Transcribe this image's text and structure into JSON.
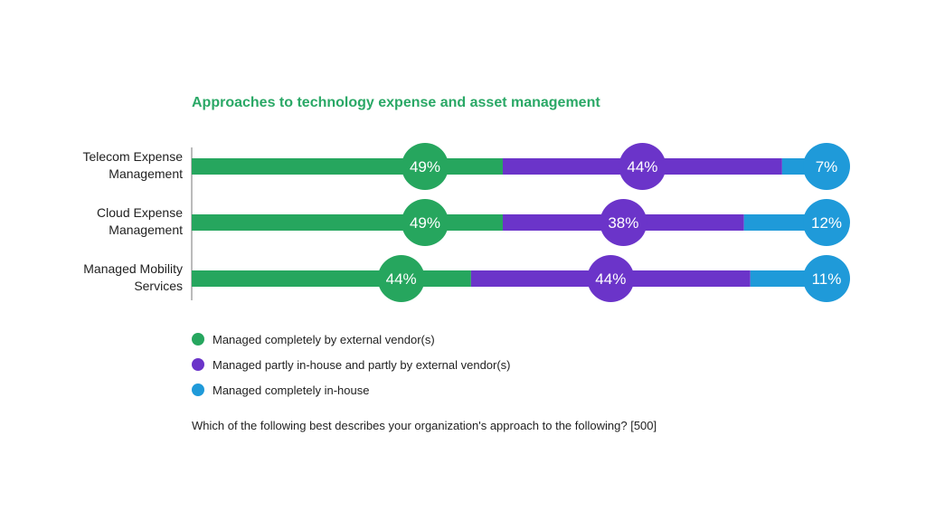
{
  "chart_data": {
    "type": "bar",
    "orientation": "horizontal",
    "stacked": true,
    "title": "Approaches to technology expense and asset management",
    "categories": [
      [
        "Telecom Expense",
        "Management"
      ],
      [
        "Cloud Expense",
        "Management"
      ],
      [
        "Managed Mobility",
        "Services"
      ]
    ],
    "series": [
      {
        "name": "Managed completely by external vendor(s)",
        "color": "#26a65e",
        "values": [
          49,
          49,
          44
        ]
      },
      {
        "name": "Managed partly in-house and partly by external vendor(s)",
        "color": "#6b34c9",
        "values": [
          44,
          38,
          44
        ]
      },
      {
        "name": "Managed completely in-house",
        "color": "#1f9ad9",
        "values": [
          7,
          12,
          11
        ]
      }
    ],
    "value_suffix": "%",
    "xlim": [
      0,
      100
    ],
    "grid": false,
    "legend_position": "bottom-left"
  },
  "footnote": "Which of the following best describes your organization's approach to the following? [500]"
}
